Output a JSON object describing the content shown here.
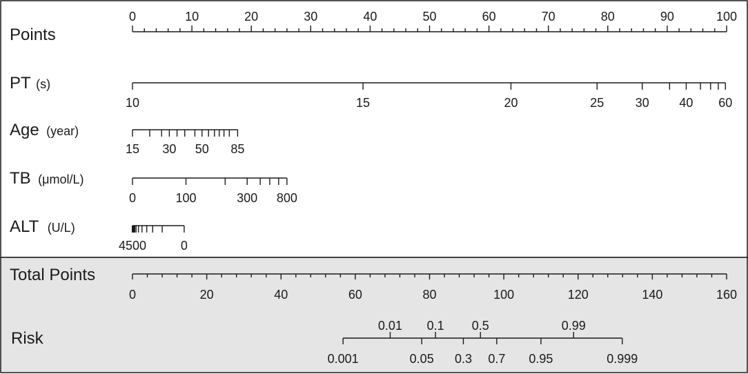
{
  "chart_data": {
    "type": "nomogram",
    "scales": [
      {
        "id": "points",
        "label": "Points",
        "unit": "",
        "ticks": [
          {
            "label": "0",
            "points": 0
          },
          {
            "label": "10",
            "points": 10
          },
          {
            "label": "20",
            "points": 20
          },
          {
            "label": "30",
            "points": 30
          },
          {
            "label": "40",
            "points": 40
          },
          {
            "label": "50",
            "points": 50
          },
          {
            "label": "60",
            "points": 60
          },
          {
            "label": "70",
            "points": 70
          },
          {
            "label": "80",
            "points": 80
          },
          {
            "label": "90",
            "points": 90
          },
          {
            "label": "100",
            "points": 100
          }
        ]
      },
      {
        "id": "pt",
        "label": "PT",
        "unit": "(s)",
        "ticks": [
          {
            "label": "10",
            "points": 0
          },
          {
            "label": "15",
            "points": 38.8
          },
          {
            "label": "20",
            "points": 63.7
          },
          {
            "label": "25",
            "points": 78.2
          },
          {
            "label": "30",
            "points": 85.8
          },
          {
            "label": "",
            "points": 90.4
          },
          {
            "label": "40",
            "points": 93.2
          },
          {
            "label": "",
            "points": 95.6
          },
          {
            "label": "",
            "points": 97.3
          },
          {
            "label": "",
            "points": 98.6
          },
          {
            "label": "60",
            "points": 99.8
          }
        ]
      },
      {
        "id": "age",
        "label": "Age",
        "unit": "(year)",
        "ticks": [
          {
            "label": "15",
            "points": 0
          },
          {
            "label": "",
            "points": 2.9
          },
          {
            "label": "",
            "points": 4.9
          },
          {
            "label": "30",
            "points": 6.2
          },
          {
            "label": "",
            "points": 7.5
          },
          {
            "label": "",
            "points": 8.8
          },
          {
            "label": "",
            "points": 10.5
          },
          {
            "label": "50",
            "points": 11.7
          },
          {
            "label": "",
            "points": 12.8
          },
          {
            "label": "",
            "points": 13.8
          },
          {
            "label": "",
            "points": 14.6
          },
          {
            "label": "",
            "points": 15.4
          },
          {
            "label": "",
            "points": 16.3
          },
          {
            "label": "85",
            "points": 17.7
          }
        ]
      },
      {
        "id": "tb",
        "label": "TB",
        "unit": "(μmol/L)",
        "ticks": [
          {
            "label": "0",
            "points": 0
          },
          {
            "label": "100",
            "points": 9.0
          },
          {
            "label": "",
            "points": 15.6
          },
          {
            "label": "300",
            "points": 19.3
          },
          {
            "label": "",
            "points": 21.5
          },
          {
            "label": "",
            "points": 23.1
          },
          {
            "label": "",
            "points": 24.6
          },
          {
            "label": "800",
            "points": 26.0
          }
        ]
      },
      {
        "id": "alt",
        "label": "ALT",
        "unit": "(U/L)",
        "ticks": [
          {
            "label": "4500",
            "points": 0
          },
          {
            "label": "",
            "points": 0.3
          },
          {
            "label": "",
            "points": 0.6
          },
          {
            "label": "",
            "points": 1.0
          },
          {
            "label": "",
            "points": 1.6
          },
          {
            "label": "",
            "points": 2.4
          },
          {
            "label": "",
            "points": 3.4
          },
          {
            "label": "",
            "points": 5.0
          },
          {
            "label": "0",
            "points": 8.7
          }
        ]
      }
    ],
    "total_points": {
      "label": "Total Points",
      "ticks": [
        {
          "label": "0",
          "value": 0
        },
        {
          "label": "20",
          "value": 20
        },
        {
          "label": "40",
          "value": 40
        },
        {
          "label": "60",
          "value": 60
        },
        {
          "label": "80",
          "value": 80
        },
        {
          "label": "100",
          "value": 100
        },
        {
          "label": "120",
          "value": 120
        },
        {
          "label": "140",
          "value": 140
        },
        {
          "label": "160",
          "value": 160
        }
      ],
      "minor_step": 4,
      "range": [
        0,
        160
      ]
    },
    "risk": {
      "label": "Risk",
      "ticks": [
        {
          "label": "0.001",
          "total_points": 56.7,
          "label_side": "below"
        },
        {
          "label": "0.01",
          "total_points": 69.4,
          "label_side": "above"
        },
        {
          "label": "0.05",
          "total_points": 77.9,
          "label_side": "below"
        },
        {
          "label": "0.1",
          "total_points": 81.6,
          "label_side": "above"
        },
        {
          "label": "0.3",
          "total_points": 89.1,
          "label_side": "below"
        },
        {
          "label": "0.5",
          "total_points": 93.7,
          "label_side": "above"
        },
        {
          "label": "0.7",
          "total_points": 98.1,
          "label_side": "below"
        },
        {
          "label": "0.95",
          "total_points": 110.0,
          "label_side": "below"
        },
        {
          "label": "0.99",
          "total_points": 118.8,
          "label_side": "above"
        },
        {
          "label": "0.999",
          "total_points": 131.9,
          "label_side": "below"
        }
      ]
    }
  }
}
